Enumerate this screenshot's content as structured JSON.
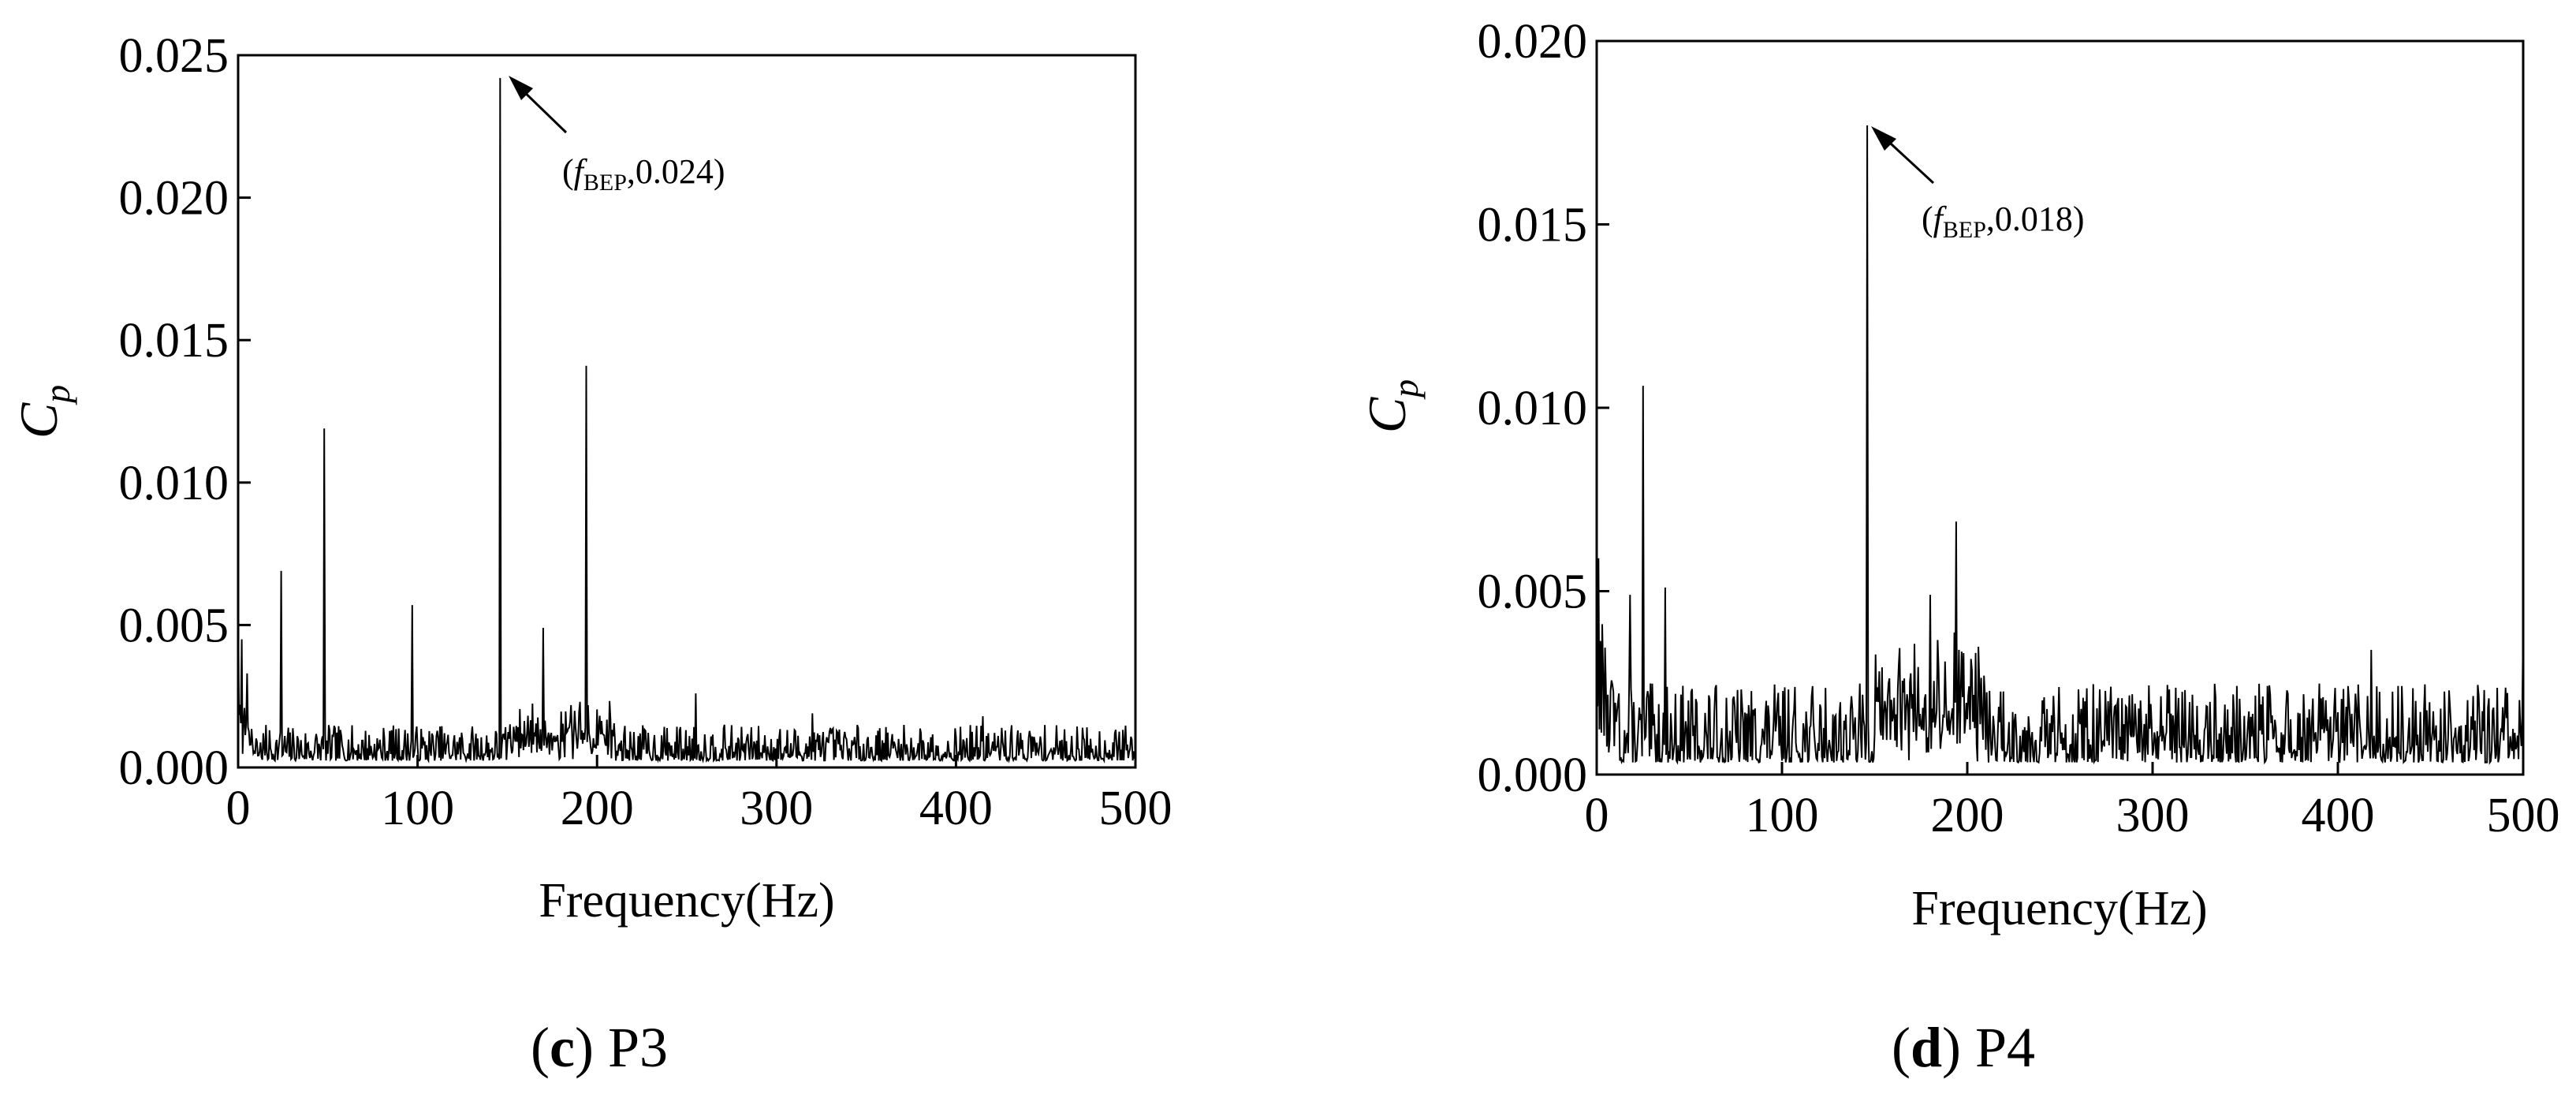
{
  "chart_data": [
    {
      "type": "line",
      "panel_letter": "c",
      "panel_name": "P3",
      "xlabel": "Frequency(Hz)",
      "ylabel": "C",
      "ylabel_sub": "p",
      "xlim": [
        0,
        500
      ],
      "ylim": [
        0,
        0.025
      ],
      "xticks": [
        0,
        100,
        200,
        300,
        400,
        500
      ],
      "xtick_labels": [
        "0",
        "100",
        "200",
        "300",
        "400",
        "500"
      ],
      "yticks": [
        0,
        0.005,
        0.01,
        0.015,
        0.02,
        0.025
      ],
      "ytick_labels": [
        "0.000",
        "0.005",
        "0.010",
        "0.015",
        "0.020",
        "0.025"
      ],
      "grid": false,
      "baseline": 0.0008,
      "noise": 0.0007,
      "peaks": [
        {
          "x": 0,
          "y": 0.0059
        },
        {
          "x": 2,
          "y": 0.0045
        },
        {
          "x": 5,
          "y": 0.0033
        },
        {
          "x": 24,
          "y": 0.0069
        },
        {
          "x": 48,
          "y": 0.0119
        },
        {
          "x": 97,
          "y": 0.0057
        },
        {
          "x": 146,
          "y": 0.0242
        },
        {
          "x": 170,
          "y": 0.0049
        },
        {
          "x": 194,
          "y": 0.0141
        },
        {
          "x": 255,
          "y": 0.0026
        },
        {
          "x": 320,
          "y": 0.0019
        },
        {
          "x": 415,
          "y": 0.0018
        }
      ],
      "annotation": {
        "text_prefix": "(",
        "italic": "f",
        "sub": "BEP",
        "text_suffix": ",0.024)",
        "x": 146,
        "y": 0.024
      }
    },
    {
      "type": "line",
      "panel_letter": "d",
      "panel_name": "P4",
      "xlabel": "Frequency(Hz)",
      "ylabel": "C",
      "ylabel_sub": "p",
      "xlim": [
        0,
        500
      ],
      "ylim": [
        0,
        0.02
      ],
      "xticks": [
        0,
        100,
        200,
        300,
        400,
        500
      ],
      "xtick_labels": [
        "0",
        "100",
        "200",
        "300",
        "400",
        "500"
      ],
      "yticks": [
        0,
        0.005,
        0.01,
        0.015,
        0.02
      ],
      "ytick_labels": [
        "0.000",
        "0.005",
        "0.010",
        "0.015",
        "0.020"
      ],
      "grid": false,
      "baseline": 0.0011,
      "noise": 0.0012,
      "peaks": [
        {
          "x": 1,
          "y": 0.0059
        },
        {
          "x": 3,
          "y": 0.0041
        },
        {
          "x": 18,
          "y": 0.0049
        },
        {
          "x": 25,
          "y": 0.0106
        },
        {
          "x": 37,
          "y": 0.0051
        },
        {
          "x": 146,
          "y": 0.0177
        },
        {
          "x": 180,
          "y": 0.0049
        },
        {
          "x": 194,
          "y": 0.0069
        },
        {
          "x": 418,
          "y": 0.0034
        },
        {
          "x": 500,
          "y": 0.0042
        }
      ],
      "annotation": {
        "text_prefix": "(",
        "italic": "f",
        "sub": "BEP",
        "text_suffix": ",0.018)",
        "x": 146,
        "y": 0.018
      }
    }
  ]
}
